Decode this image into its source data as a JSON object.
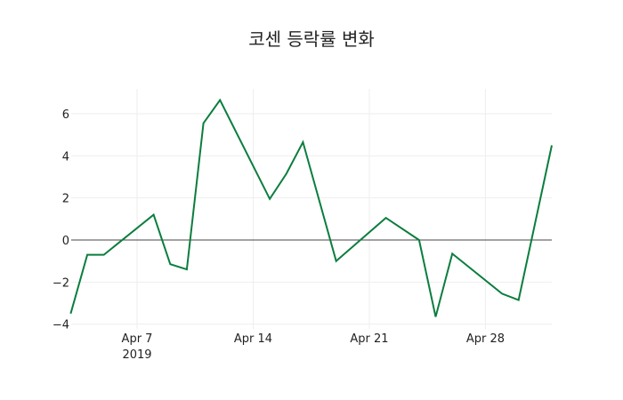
{
  "title": "코센 등락률 변화",
  "colors": {
    "line": "#0b7d3e",
    "grid": "#eeeeee",
    "zeroline": "#444444",
    "text": "#222222"
  },
  "chart_data": {
    "type": "line",
    "title": "코센 등락률 변화",
    "xlabel": "",
    "ylabel": "",
    "x": [
      "2019-04-03",
      "2019-04-04",
      "2019-04-05",
      "2019-04-08",
      "2019-04-09",
      "2019-04-10",
      "2019-04-11",
      "2019-04-12",
      "2019-04-15",
      "2019-04-16",
      "2019-04-17",
      "2019-04-19",
      "2019-04-22",
      "2019-04-24",
      "2019-04-25",
      "2019-04-26",
      "2019-04-29",
      "2019-04-30",
      "2019-05-02"
    ],
    "series": [
      {
        "name": "등락률",
        "values": [
          -3.5,
          -0.7,
          -0.7,
          1.2,
          -1.15,
          -1.4,
          5.55,
          6.65,
          1.95,
          3.15,
          4.65,
          -1.0,
          1.05,
          0.0,
          -3.65,
          -0.65,
          -2.55,
          -2.85,
          4.5
        ]
      }
    ],
    "x_ticks": [
      {
        "label": "Apr 7",
        "sublabel": "2019",
        "day": 7
      },
      {
        "label": "Apr 14",
        "sublabel": "",
        "day": 14
      },
      {
        "label": "Apr 21",
        "sublabel": "",
        "day": 21
      },
      {
        "label": "Apr 28",
        "sublabel": "",
        "day": 28
      }
    ],
    "y_ticks": [
      -4,
      -2,
      0,
      2,
      4,
      6
    ],
    "y_tick_labels": [
      "−4",
      "−2",
      "0",
      "2",
      "4",
      "6"
    ],
    "ylim": [
      -4.25,
      7.2
    ],
    "grid": true,
    "legend": "none"
  }
}
